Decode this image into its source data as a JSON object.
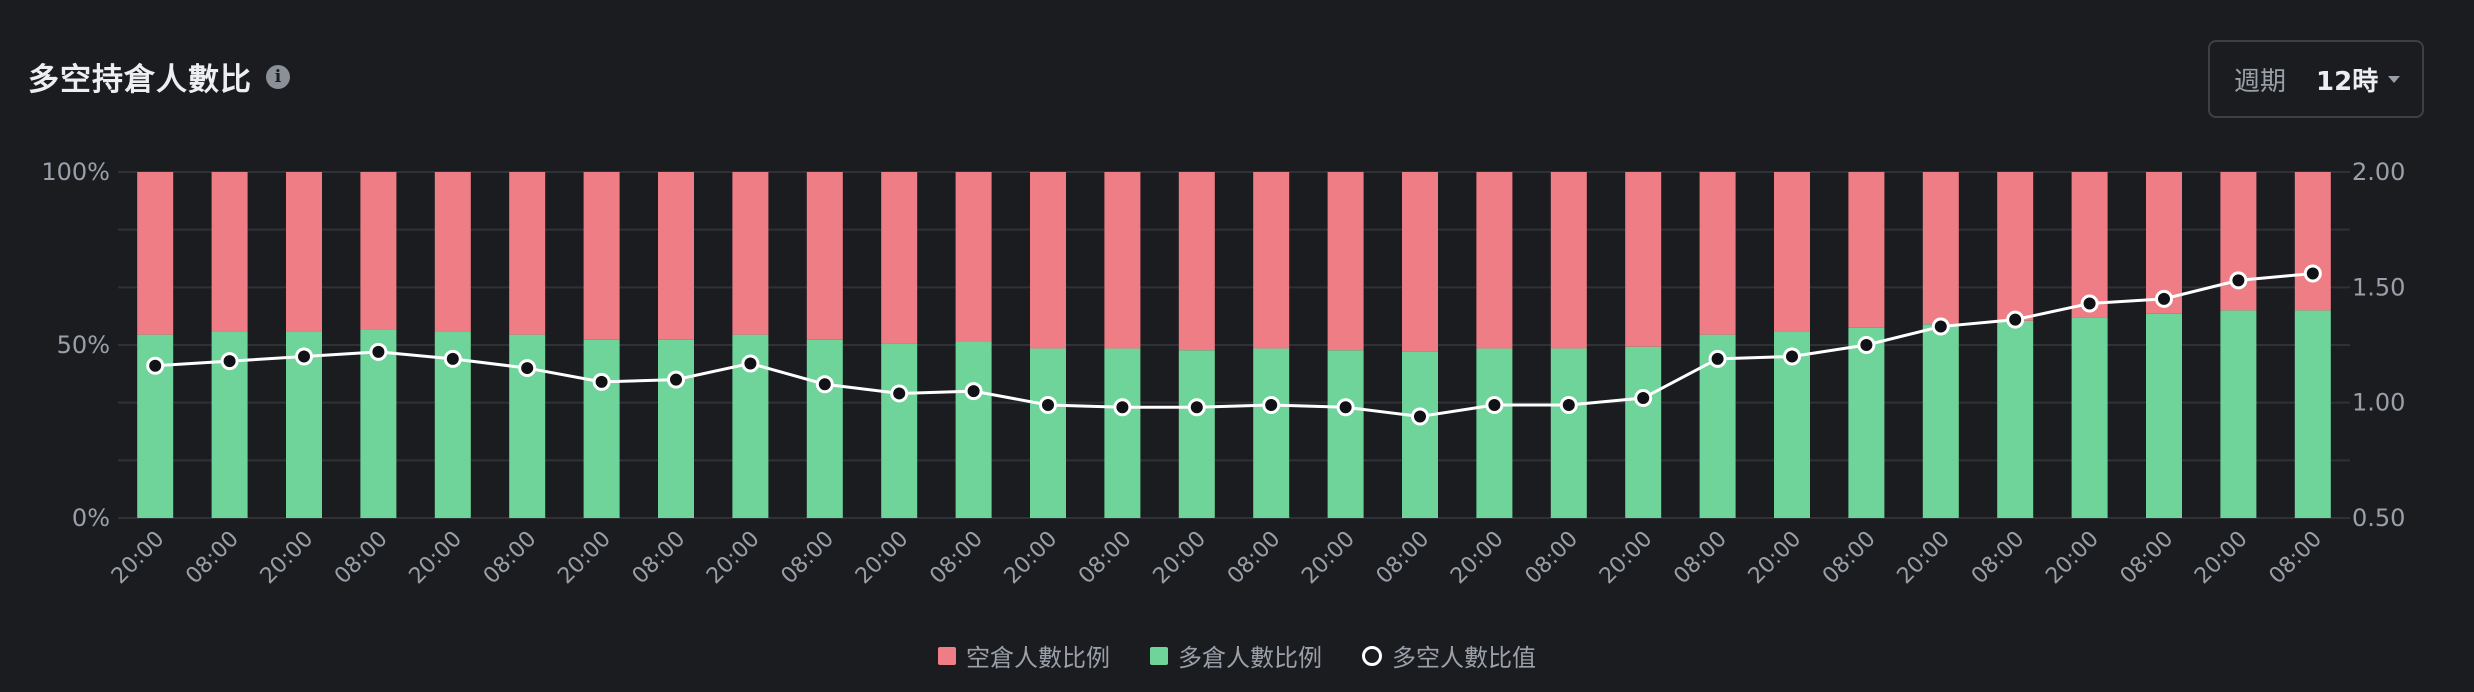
{
  "header": {
    "title": "多空持倉人數比",
    "info_icon": "info-icon",
    "period_label": "週期",
    "period_value": "12時"
  },
  "colors": {
    "background": "#1b1c20",
    "short": "#ef7d85",
    "long": "#6fd49a",
    "ratio_line": "#ffffff",
    "grid": "#2f3137",
    "axis_text": "#9aa0a9"
  },
  "chart_data": {
    "type": "bar",
    "stacked": true,
    "categories": [
      "20:00",
      "08:00",
      "20:00",
      "08:00",
      "20:00",
      "08:00",
      "20:00",
      "08:00",
      "20:00",
      "08:00",
      "20:00",
      "08:00",
      "20:00",
      "08:00",
      "20:00",
      "08:00",
      "20:00",
      "08:00",
      "20:00",
      "08:00",
      "20:00",
      "08:00",
      "20:00",
      "08:00",
      "20:00",
      "08:00",
      "20:00",
      "08:00",
      "20:00",
      "08:00"
    ],
    "series": [
      {
        "name": "空倉人數比例",
        "type": "bar",
        "axis": "left",
        "values": [
          47,
          46,
          46,
          45.5,
          46,
          47,
          48.5,
          48.5,
          47,
          48.5,
          49.5,
          49,
          51,
          51,
          51.5,
          51,
          51.5,
          52,
          51,
          51,
          50.5,
          47,
          46,
          45,
          44,
          43,
          42,
          41,
          40,
          40
        ]
      },
      {
        "name": "多倉人數比例",
        "type": "bar",
        "axis": "left",
        "values": [
          53,
          54,
          54,
          54.5,
          54,
          53,
          51.5,
          51.5,
          53,
          51.5,
          50.5,
          51,
          49,
          49,
          48.5,
          49,
          48.5,
          48,
          49,
          49,
          49.5,
          53,
          54,
          55,
          56,
          57,
          58,
          59,
          60,
          60
        ]
      },
      {
        "name": "多空人數比值",
        "type": "line",
        "axis": "right",
        "values": [
          1.16,
          1.18,
          1.2,
          1.22,
          1.19,
          1.15,
          1.09,
          1.1,
          1.17,
          1.08,
          1.04,
          1.05,
          0.99,
          0.98,
          0.98,
          0.99,
          0.98,
          0.94,
          0.99,
          0.99,
          1.02,
          1.19,
          1.2,
          1.25,
          1.33,
          1.36,
          1.43,
          1.45,
          1.53,
          1.56
        ]
      }
    ],
    "y_left": {
      "ticks": [
        "0%",
        "50%",
        "100%"
      ],
      "range": [
        0,
        100
      ]
    },
    "y_right": {
      "ticks": [
        "0.50",
        "1.00",
        "1.50",
        "2.00"
      ],
      "range": [
        0.5,
        2.0
      ]
    },
    "grid": true,
    "legend_position": "bottom-center"
  }
}
